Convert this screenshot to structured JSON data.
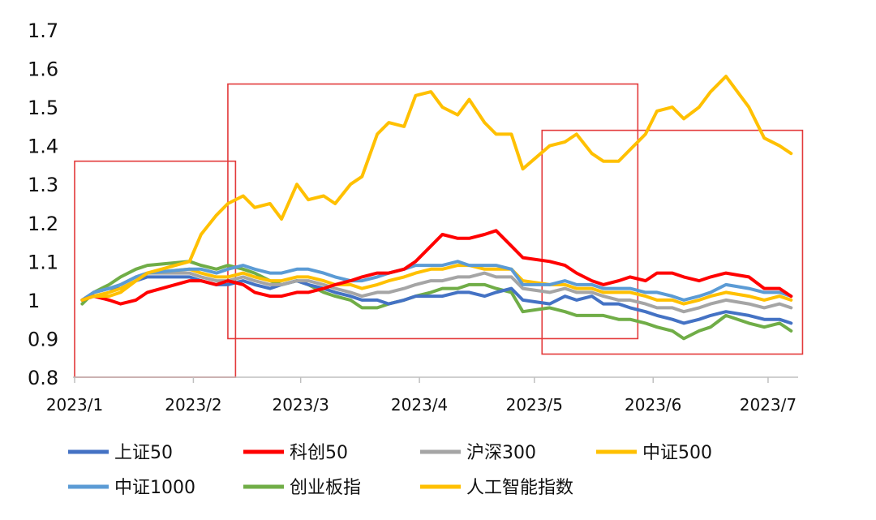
{
  "chart_data": {
    "type": "line",
    "title": "",
    "xlabel": "",
    "ylabel": "",
    "ylim": [
      0.8,
      1.7
    ],
    "yticks": [
      "0.8",
      "0.9",
      "1",
      "1.1",
      "1.2",
      "1.3",
      "1.4",
      "1.5",
      "1.6",
      "1.7"
    ],
    "xticks": [
      "2023/1",
      "2023/2",
      "2023/3",
      "2023/4",
      "2023/5",
      "2023/6",
      "2023/7"
    ],
    "grid": false,
    "legend_position": "bottom",
    "x": [
      "2023-01-03",
      "2023-01-06",
      "2023-01-10",
      "2023-01-13",
      "2023-01-17",
      "2023-01-20",
      "2023-01-31",
      "2023-02-03",
      "2023-02-07",
      "2023-02-10",
      "2023-02-14",
      "2023-02-17",
      "2023-02-21",
      "2023-02-24",
      "2023-02-28",
      "2023-03-03",
      "2023-03-07",
      "2023-03-10",
      "2023-03-14",
      "2023-03-17",
      "2023-03-21",
      "2023-03-24",
      "2023-03-28",
      "2023-03-31",
      "2023-04-04",
      "2023-04-07",
      "2023-04-11",
      "2023-04-14",
      "2023-04-18",
      "2023-04-21",
      "2023-04-25",
      "2023-04-28",
      "2023-05-05",
      "2023-05-09",
      "2023-05-12",
      "2023-05-16",
      "2023-05-19",
      "2023-05-23",
      "2023-05-26",
      "2023-05-30",
      "2023-06-02",
      "2023-06-06",
      "2023-06-09",
      "2023-06-13",
      "2023-06-16",
      "2023-06-20",
      "2023-06-26",
      "2023-06-30",
      "2023-07-04",
      "2023-07-07"
    ],
    "series": [
      {
        "name": "上证50",
        "color": "#4472c4",
        "values": [
          1.0,
          1.02,
          1.03,
          1.03,
          1.05,
          1.06,
          1.06,
          1.05,
          1.04,
          1.04,
          1.05,
          1.04,
          1.03,
          1.04,
          1.05,
          1.04,
          1.03,
          1.02,
          1.01,
          1.0,
          1.0,
          0.99,
          1.0,
          1.01,
          1.01,
          1.01,
          1.02,
          1.02,
          1.01,
          1.02,
          1.03,
          1.0,
          0.99,
          1.01,
          1.0,
          1.01,
          0.99,
          0.99,
          0.98,
          0.97,
          0.96,
          0.95,
          0.94,
          0.95,
          0.96,
          0.97,
          0.96,
          0.95,
          0.95,
          0.94
        ]
      },
      {
        "name": "科创50",
        "color": "#ff0000",
        "values": [
          1.0,
          1.01,
          1.0,
          0.99,
          1.0,
          1.02,
          1.05,
          1.05,
          1.04,
          1.05,
          1.04,
          1.02,
          1.01,
          1.01,
          1.02,
          1.02,
          1.03,
          1.04,
          1.05,
          1.06,
          1.07,
          1.07,
          1.08,
          1.1,
          1.14,
          1.17,
          1.16,
          1.16,
          1.17,
          1.18,
          1.14,
          1.11,
          1.1,
          1.09,
          1.07,
          1.05,
          1.04,
          1.05,
          1.06,
          1.05,
          1.07,
          1.07,
          1.06,
          1.05,
          1.06,
          1.07,
          1.06,
          1.03,
          1.03,
          1.01
        ]
      },
      {
        "name": "沪深300",
        "color": "#a5a5a5",
        "values": [
          1.0,
          1.02,
          1.03,
          1.04,
          1.06,
          1.07,
          1.07,
          1.06,
          1.05,
          1.05,
          1.06,
          1.05,
          1.04,
          1.04,
          1.05,
          1.05,
          1.04,
          1.03,
          1.02,
          1.01,
          1.02,
          1.02,
          1.03,
          1.04,
          1.05,
          1.05,
          1.06,
          1.06,
          1.07,
          1.06,
          1.06,
          1.03,
          1.02,
          1.03,
          1.02,
          1.02,
          1.01,
          1.0,
          1.0,
          0.99,
          0.98,
          0.98,
          0.97,
          0.98,
          0.99,
          1.0,
          0.99,
          0.98,
          0.99,
          0.98
        ]
      },
      {
        "name": "中证500",
        "color": "#ffc000",
        "values": [
          1.0,
          1.01,
          1.02,
          1.03,
          1.05,
          1.07,
          1.08,
          1.07,
          1.06,
          1.06,
          1.07,
          1.06,
          1.05,
          1.05,
          1.06,
          1.06,
          1.05,
          1.04,
          1.04,
          1.03,
          1.04,
          1.05,
          1.06,
          1.07,
          1.08,
          1.08,
          1.09,
          1.09,
          1.08,
          1.08,
          1.08,
          1.05,
          1.04,
          1.04,
          1.03,
          1.03,
          1.02,
          1.02,
          1.02,
          1.01,
          1.0,
          1.0,
          0.99,
          1.0,
          1.01,
          1.02,
          1.01,
          1.0,
          1.01,
          1.0
        ]
      },
      {
        "name": "中证1000",
        "color": "#5b9bd5",
        "values": [
          1.0,
          1.02,
          1.03,
          1.04,
          1.06,
          1.07,
          1.08,
          1.08,
          1.07,
          1.08,
          1.09,
          1.08,
          1.07,
          1.07,
          1.08,
          1.08,
          1.07,
          1.06,
          1.05,
          1.05,
          1.06,
          1.07,
          1.08,
          1.09,
          1.09,
          1.09,
          1.1,
          1.09,
          1.09,
          1.09,
          1.08,
          1.04,
          1.04,
          1.05,
          1.04,
          1.04,
          1.03,
          1.03,
          1.03,
          1.02,
          1.02,
          1.01,
          1.0,
          1.01,
          1.02,
          1.04,
          1.03,
          1.02,
          1.02,
          1.01
        ]
      },
      {
        "name": "创业板指",
        "color": "#70ad47",
        "values": [
          0.99,
          1.02,
          1.04,
          1.06,
          1.08,
          1.09,
          1.1,
          1.09,
          1.08,
          1.09,
          1.08,
          1.07,
          1.05,
          1.04,
          1.05,
          1.04,
          1.02,
          1.01,
          1.0,
          0.98,
          0.98,
          0.99,
          1.0,
          1.01,
          1.02,
          1.03,
          1.03,
          1.04,
          1.04,
          1.03,
          1.02,
          0.97,
          0.98,
          0.97,
          0.96,
          0.96,
          0.96,
          0.95,
          0.95,
          0.94,
          0.93,
          0.92,
          0.9,
          0.92,
          0.93,
          0.96,
          0.94,
          0.93,
          0.94,
          0.92
        ]
      },
      {
        "name": "人工智能指数",
        "color": "#ffc000",
        "values": [
          1.0,
          1.01,
          1.01,
          1.02,
          1.05,
          1.07,
          1.1,
          1.17,
          1.22,
          1.25,
          1.27,
          1.24,
          1.25,
          1.21,
          1.3,
          1.26,
          1.27,
          1.25,
          1.3,
          1.32,
          1.43,
          1.46,
          1.45,
          1.53,
          1.54,
          1.5,
          1.48,
          1.52,
          1.46,
          1.43,
          1.43,
          1.34,
          1.4,
          1.41,
          1.43,
          1.38,
          1.36,
          1.36,
          1.39,
          1.43,
          1.49,
          1.5,
          1.47,
          1.5,
          1.54,
          1.58,
          1.5,
          1.42,
          1.4,
          1.38
        ]
      }
    ],
    "annotations": {
      "highlight_boxes": [
        {
          "from": "2023-01-01",
          "to": "2023-02-12",
          "y_from": 0.8,
          "y_to": 1.36
        },
        {
          "from": "2023-02-10",
          "to": "2023-05-28",
          "y_from": 0.9,
          "y_to": 1.56
        },
        {
          "from": "2023-05-03",
          "to": "2023-07-10",
          "y_from": 0.86,
          "y_to": 1.44
        }
      ],
      "highlight_color": "#e3393a"
    }
  }
}
